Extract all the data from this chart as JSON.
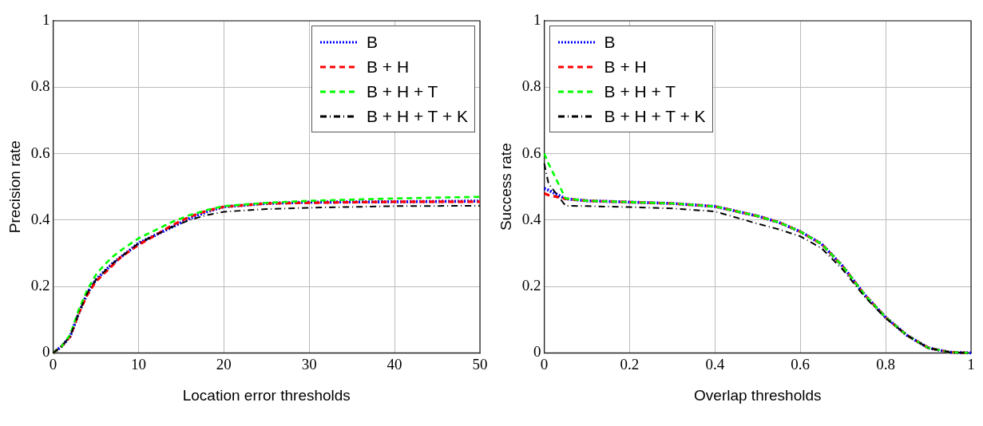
{
  "chart_data": [
    {
      "type": "line",
      "xlabel": "Location error thresholds",
      "ylabel": "Precision rate",
      "xlim": [
        0,
        50
      ],
      "xticks": [
        0,
        10,
        20,
        30,
        40,
        50
      ],
      "ylim": [
        0,
        1
      ],
      "yticks": [
        0,
        0.2,
        0.4,
        0.6,
        0.8,
        1
      ],
      "grid": true,
      "legend": "top right",
      "marker": "none",
      "x": [
        0,
        1,
        2,
        3,
        4,
        5,
        6,
        7,
        8,
        10,
        12,
        14,
        16,
        18,
        20,
        25,
        30,
        40,
        50
      ],
      "series": [
        {
          "name": "B",
          "color": "#0000ff",
          "line_style": "dotted",
          "values": [
            0,
            0.02,
            0.05,
            0.12,
            0.18,
            0.22,
            0.245,
            0.27,
            0.29,
            0.33,
            0.355,
            0.38,
            0.405,
            0.425,
            0.44,
            0.45,
            0.454,
            0.455,
            0.457
          ]
        },
        {
          "name": "B + H",
          "color": "#ff0000",
          "line_style": "dashed",
          "values": [
            0,
            0.02,
            0.05,
            0.12,
            0.175,
            0.215,
            0.24,
            0.265,
            0.29,
            0.325,
            0.355,
            0.385,
            0.41,
            0.428,
            0.44,
            0.45,
            0.452,
            0.455,
            0.455
          ]
        },
        {
          "name": "B + H + T",
          "color": "#00ff00",
          "line_style": "dashed",
          "values": [
            0,
            0.02,
            0.055,
            0.13,
            0.19,
            0.235,
            0.265,
            0.29,
            0.31,
            0.345,
            0.37,
            0.395,
            0.415,
            0.43,
            0.442,
            0.452,
            0.458,
            0.465,
            0.47
          ]
        },
        {
          "name": "B + H + T + K",
          "color": "#000000",
          "line_style": "dashdot",
          "values": [
            0,
            0.02,
            0.05,
            0.12,
            0.18,
            0.22,
            0.245,
            0.27,
            0.29,
            0.33,
            0.355,
            0.38,
            0.4,
            0.415,
            0.425,
            0.433,
            0.437,
            0.442,
            0.443
          ]
        }
      ]
    },
    {
      "type": "line",
      "xlabel": "Overlap thresholds",
      "ylabel": "Success rate",
      "xlim": [
        0,
        1
      ],
      "xticks": [
        0,
        0.2,
        0.4,
        0.6,
        0.8,
        1
      ],
      "ylim": [
        0,
        1
      ],
      "yticks": [
        0,
        0.2,
        0.4,
        0.6,
        0.8,
        1
      ],
      "grid": true,
      "legend": "top left",
      "marker": "none",
      "x": [
        0,
        0.01,
        0.05,
        0.1,
        0.2,
        0.3,
        0.4,
        0.5,
        0.55,
        0.6,
        0.65,
        0.7,
        0.75,
        0.8,
        0.85,
        0.9,
        0.95,
        1
      ],
      "series": [
        {
          "name": "B",
          "color": "#0000ff",
          "line_style": "dotted",
          "values": [
            0.495,
            0.49,
            0.464,
            0.458,
            0.454,
            0.45,
            0.441,
            0.412,
            0.393,
            0.365,
            0.328,
            0.26,
            0.176,
            0.107,
            0.053,
            0.015,
            0.002,
            0
          ]
        },
        {
          "name": "B + H",
          "color": "#ff0000",
          "line_style": "dashed",
          "values": [
            0.48,
            0.475,
            0.464,
            0.458,
            0.454,
            0.45,
            0.441,
            0.412,
            0.393,
            0.365,
            0.328,
            0.26,
            0.176,
            0.107,
            0.053,
            0.015,
            0.002,
            0
          ]
        },
        {
          "name": "B + H + T",
          "color": "#00ff00",
          "line_style": "dashed",
          "values": [
            0.6,
            0.57,
            0.465,
            0.458,
            0.454,
            0.45,
            0.441,
            0.412,
            0.393,
            0.365,
            0.328,
            0.26,
            0.176,
            0.107,
            0.053,
            0.015,
            0.002,
            0
          ]
        },
        {
          "name": "B + H + T + K",
          "color": "#000000",
          "line_style": "dashdot",
          "values": [
            0.57,
            0.51,
            0.443,
            0.442,
            0.439,
            0.435,
            0.426,
            0.389,
            0.372,
            0.351,
            0.315,
            0.25,
            0.17,
            0.105,
            0.053,
            0.015,
            0.002,
            0
          ]
        }
      ]
    }
  ]
}
